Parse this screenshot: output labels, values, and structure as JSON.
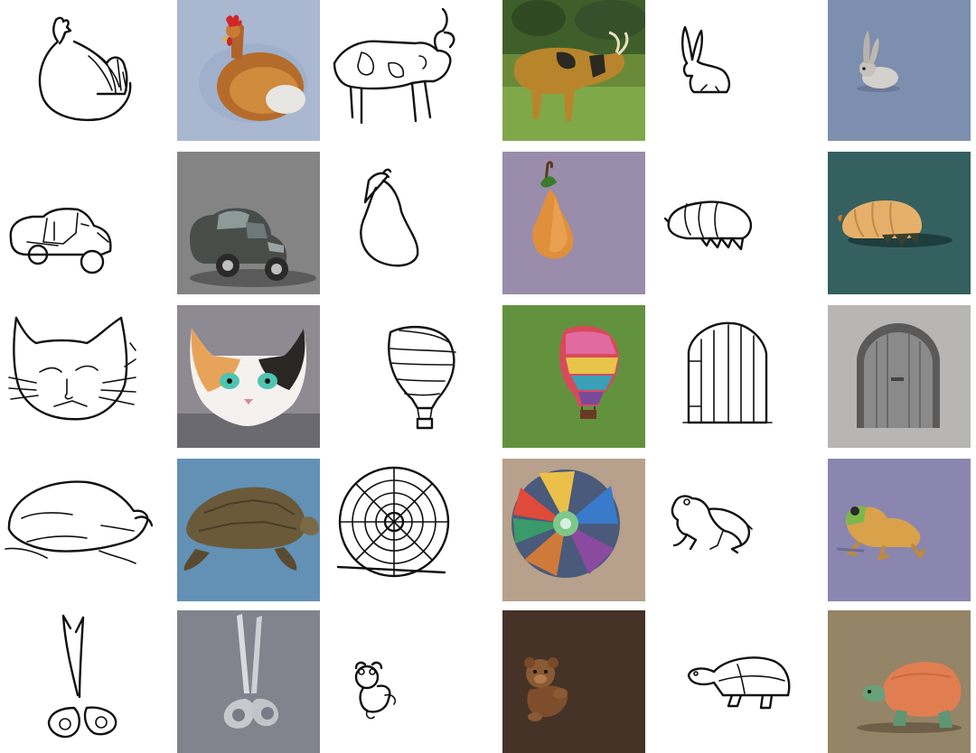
{
  "colors": {
    "page_background": "#ffffff",
    "sketch_stroke": "#111111",
    "photo_backgrounds": [
      "#a9b7d0",
      "#8a8a8a",
      "#a9a3b3",
      "#5f8db5",
      "#8d857a",
      "#6b8a3a",
      "#9a8ca9",
      "#6b6660",
      "#4f7a4a",
      "#2f5a5a",
      "#b8b6b4",
      "#3f2f26",
      "#8a7b62"
    ]
  },
  "grid": {
    "rows": 5,
    "pairs_per_row": 3,
    "pairs": [
      {
        "sketch": "chicken-sketch",
        "photo": "chicken-photo"
      },
      {
        "sketch": "cow-sketch",
        "photo": "cow-photo"
      },
      {
        "sketch": "rabbit-sketch",
        "photo": "rabbit-photo"
      },
      {
        "sketch": "car-sketch",
        "photo": "car-photo"
      },
      {
        "sketch": "pear-sketch",
        "photo": "pear-photo"
      },
      {
        "sketch": "armadillo-sketch",
        "photo": "armadillo-photo"
      },
      {
        "sketch": "cat-sketch",
        "photo": "cat-photo"
      },
      {
        "sketch": "hot-air-balloon-sketch",
        "photo": "hot-air-balloon-photo"
      },
      {
        "sketch": "door-sketch",
        "photo": "door-photo"
      },
      {
        "sketch": "turtle-sketch",
        "photo": "turtle-photo"
      },
      {
        "sketch": "fan-sketch",
        "photo": "fan-photo"
      },
      {
        "sketch": "frog-sketch",
        "photo": "frog-photo"
      },
      {
        "sketch": "scissors-sketch",
        "photo": "scissors-photo"
      },
      {
        "sketch": "teddy-bear-sketch",
        "photo": "teddy-bear-photo"
      },
      {
        "sketch": "tortoise-sketch",
        "photo": "tortoise-photo"
      }
    ]
  }
}
